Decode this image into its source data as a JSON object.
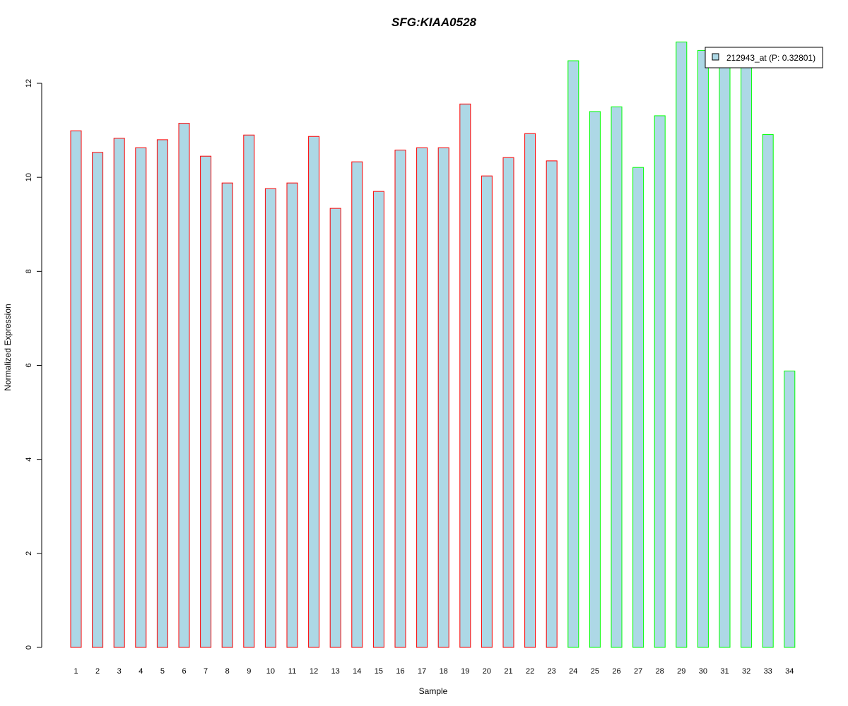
{
  "chart_data": {
    "type": "bar",
    "title": "SFG:KIAA0528",
    "xlabel": "Sample",
    "ylabel": "Normalized Expression",
    "ylim": [
      0,
      13
    ],
    "yticks": [
      0,
      2,
      4,
      6,
      8,
      10,
      12
    ],
    "grid": false,
    "legend_placement": "top-right",
    "categories": [
      "1",
      "2",
      "3",
      "4",
      "5",
      "6",
      "7",
      "8",
      "9",
      "10",
      "11",
      "12",
      "13",
      "14",
      "15",
      "16",
      "17",
      "18",
      "19",
      "20",
      "21",
      "22",
      "23",
      "24",
      "25",
      "26",
      "27",
      "28",
      "29",
      "30",
      "31",
      "32",
      "33",
      "34"
    ],
    "series": [
      {
        "name": "212943_at (P: 0.32801)",
        "values": [
          10.99,
          10.53,
          10.83,
          10.63,
          10.8,
          11.15,
          10.45,
          9.88,
          10.9,
          9.76,
          9.88,
          10.87,
          9.34,
          10.33,
          9.7,
          10.58,
          10.63,
          10.63,
          11.56,
          10.03,
          10.42,
          10.93,
          10.35,
          12.48,
          11.4,
          11.5,
          10.21,
          11.31,
          12.88,
          12.7,
          12.4,
          12.4,
          10.91,
          5.88
        ]
      }
    ],
    "bar_fill": "#add8e6",
    "group_colors": [
      "#ff0000",
      "#00ff00"
    ],
    "bar_groups": [
      1,
      1,
      1,
      1,
      1,
      1,
      1,
      1,
      1,
      1,
      1,
      1,
      1,
      1,
      1,
      1,
      1,
      1,
      1,
      1,
      1,
      1,
      1,
      2,
      2,
      2,
      2,
      2,
      2,
      2,
      2,
      2,
      2,
      2
    ],
    "title_color": "#0000cc"
  }
}
